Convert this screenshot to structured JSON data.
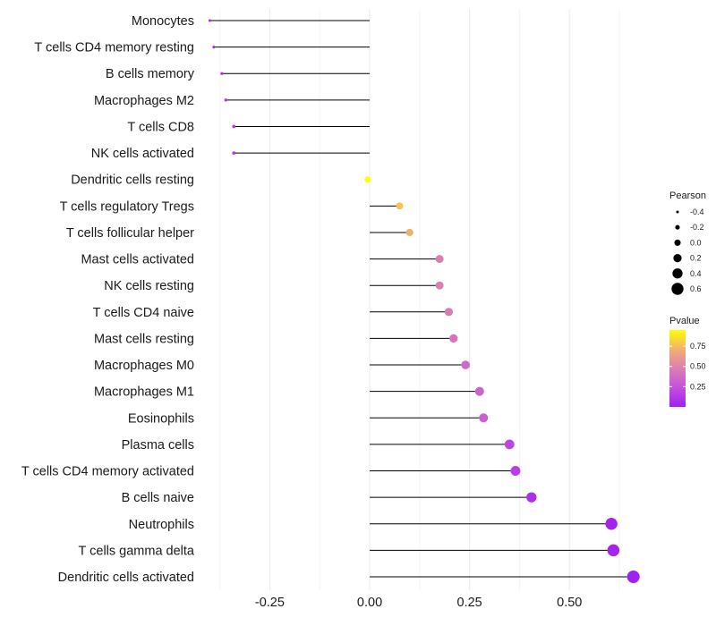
{
  "chart_data": {
    "type": "lollipop",
    "title": "",
    "xlabel": "",
    "ylabel": "",
    "xlim": [
      -0.41,
      0.71
    ],
    "x_ticks": [
      -0.25,
      0.0,
      0.25,
      0.5
    ],
    "x_tick_labels": [
      "-0.25",
      "0.00",
      "0.25",
      "0.50"
    ],
    "grid": "vertical major and minor",
    "categories": [
      "Monocytes",
      "T cells CD4 memory resting",
      "B cells memory",
      "Macrophages M2",
      "T cells CD8",
      "NK cells activated",
      "Dendritic cells resting",
      "T cells regulatory  Tregs",
      "T cells follicular helper",
      "Mast cells activated",
      "NK cells resting",
      "T cells CD4 naive",
      "Mast cells resting",
      "Macrophages M0",
      "Macrophages M1",
      "Eosinophils",
      "Plasma cells",
      "T cells CD4 memory activated",
      "B cells naive",
      "Neutrophils",
      "T cells gamma delta",
      "Dendritic cells activated"
    ],
    "pearson": [
      -0.4,
      -0.39,
      -0.37,
      -0.36,
      -0.34,
      -0.34,
      -0.005,
      0.075,
      0.1,
      0.175,
      0.175,
      0.198,
      0.21,
      0.24,
      0.275,
      0.285,
      0.35,
      0.365,
      0.405,
      0.605,
      0.61,
      0.66
    ],
    "pvalue": [
      0.04,
      0.05,
      0.1,
      0.12,
      0.12,
      0.12,
      0.99,
      0.8,
      0.75,
      0.5,
      0.5,
      0.47,
      0.44,
      0.38,
      0.35,
      0.33,
      0.2,
      0.16,
      0.08,
      0.02,
      0.02,
      0.01
    ],
    "size_legend": {
      "title": "Pearson",
      "values": [
        -0.4,
        -0.2,
        0.0,
        0.2,
        0.4,
        0.6
      ],
      "labels": [
        "-0.4",
        "-0.2",
        "0.0",
        "0.2",
        "0.4",
        "0.6"
      ]
    },
    "color_legend": {
      "title": "Pvalue",
      "range": [
        0.0,
        0.95
      ],
      "ticks": [
        0.25,
        0.5,
        0.75
      ],
      "tick_labels": [
        "0.25",
        "0.50",
        "0.75"
      ],
      "low_color": "#a020f0",
      "high_color": "#ffff00"
    }
  }
}
